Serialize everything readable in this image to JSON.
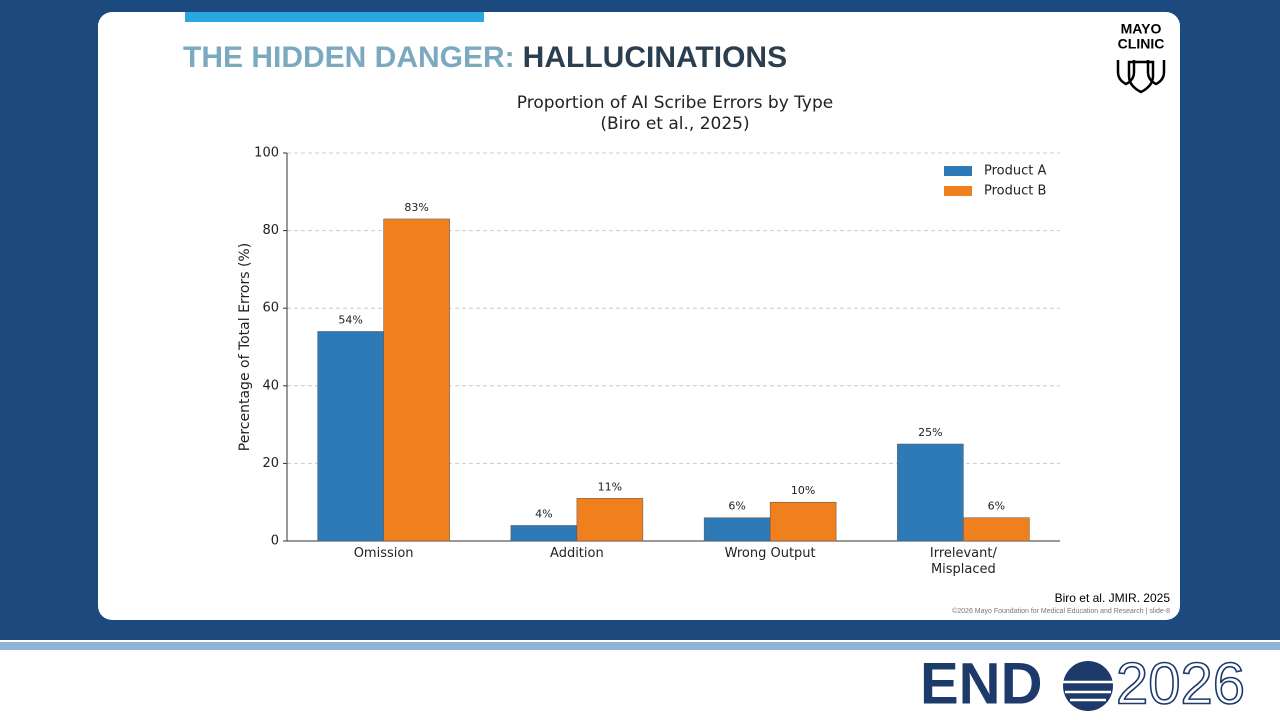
{
  "slide": {
    "title_part1": "THE HIDDEN DANGER:",
    "title_part2": "HALLUCINATIONS",
    "logo_line1": "MAYO",
    "logo_line2": "CLINIC",
    "citation": "Biro et al. JMIR. 2025",
    "footer": "©2026 Mayo Foundation for Medical Education and Research  |  slide-8",
    "event_logo_part1": "END",
    "event_logo_part2": "2026"
  },
  "chart_data": {
    "type": "bar",
    "title": "Proportion of AI Scribe Errors by Type",
    "subtitle": "(Biro et al., 2025)",
    "ylabel": "Percentage of Total Errors (%)",
    "categories": [
      "Omission",
      "Addition",
      "Wrong Output",
      "Irrelevant/\nMisplaced"
    ],
    "series": [
      {
        "name": "Product A",
        "color": "#2e7ab6",
        "values": [
          54,
          4,
          6,
          25
        ],
        "value_labels": [
          "54%",
          "4%",
          "6%",
          "25%"
        ]
      },
      {
        "name": "Product B",
        "color": "#f07f1e",
        "values": [
          83,
          11,
          10,
          6
        ],
        "value_labels": [
          "83%",
          "11%",
          "10%",
          "6%"
        ]
      }
    ],
    "ylim": [
      0,
      100
    ],
    "yticks": [
      0,
      20,
      40,
      60,
      80,
      100
    ],
    "grid": true,
    "legend": "upper-right"
  }
}
